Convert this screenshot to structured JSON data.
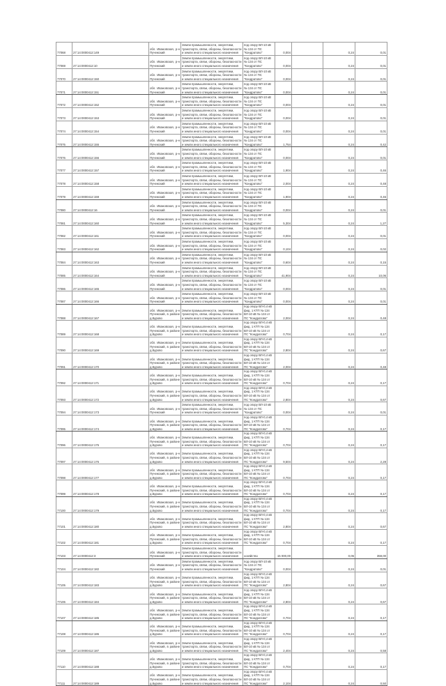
{
  "defaults": {
    "address_short": "обл. Ивановская, р-н Пучежский",
    "address_long": "обл. Ивановская, р-н Пучежский, в районе д.Бурово",
    "description": "Земли промышленности, энергетики, транспорта, связи, обороны, безопасности и земли иного специального назначения",
    "location_short": "под опору ВЛ-10 кВ № 134 от ПС \"Кондратово\"",
    "location_long": "под опору ВЛ-0,4 кВ фид. 1 КТП № 134 ВЛ-10 кВ № 134 от ПС \"Кондратово\""
  },
  "rows": [
    {
      "id": "77068",
      "cad": "27:14:0000412:149",
      "t": "s",
      "area": "0,004",
      "coef": "0,24",
      "value": "0,01"
    },
    {
      "id": "77069",
      "cad": "27:14:0000412:10",
      "t": "s",
      "area": "0,004",
      "coef": "0,24",
      "value": "0,01"
    },
    {
      "id": "77070",
      "cad": "27:14:0000412:150",
      "t": "s",
      "area": "0,004",
      "coef": "0,24",
      "value": "0,01"
    },
    {
      "id": "77071",
      "cad": "27:14:0000412:151",
      "t": "s",
      "area": "0,004",
      "coef": "0,24",
      "value": "0,01"
    },
    {
      "id": "77072",
      "cad": "27:14:0000412:152",
      "t": "s",
      "area": "0,004",
      "coef": "0,24",
      "value": "0,01"
    },
    {
      "id": "77073",
      "cad": "27:14:0000412:153",
      "t": "s",
      "area": "0,004",
      "coef": "0,24",
      "value": "0,01"
    },
    {
      "id": "77074",
      "cad": "27:14:0000412:154",
      "t": "s",
      "area": "0,004",
      "coef": "0,24",
      "value": "0,01"
    },
    {
      "id": "77075",
      "cad": "27:14:0000412:155",
      "t": "s",
      "area": "1,754",
      "coef": "0,24",
      "value": "0,42"
    },
    {
      "id": "77076",
      "cad": "27:14:0000412:156",
      "t": "s",
      "area": "0,004",
      "coef": "0,24",
      "value": "0,01"
    },
    {
      "id": "77077",
      "cad": "27:14:0000412:157",
      "t": "s",
      "area": "1,904",
      "coef": "0,24",
      "value": "0,46"
    },
    {
      "id": "77078",
      "cad": "27:14:0000412:158",
      "t": "s",
      "area": "2,004",
      "coef": "0,24",
      "value": "0,48"
    },
    {
      "id": "77079",
      "cad": "27:14:0000412:159",
      "t": "s",
      "area": "1,904",
      "coef": "0,24",
      "value": "0,46"
    },
    {
      "id": "77080",
      "cad": "27:14:0000412:16",
      "t": "s",
      "area": "0,004",
      "coef": "0,24",
      "value": "0,01"
    },
    {
      "id": "77081",
      "cad": "27:14:0000412:160",
      "t": "s",
      "area": "5,304",
      "coef": "0,24",
      "value": "1,27"
    },
    {
      "id": "77082",
      "cad": "27:14:0000412:161",
      "t": "s",
      "area": "0,004",
      "coef": "0,24",
      "value": "0,01"
    },
    {
      "id": "77083",
      "cad": "27:14:0000412:162",
      "t": "s",
      "area": "0,104",
      "coef": "0,24",
      "value": "0,02"
    },
    {
      "id": "77084",
      "cad": "27:14:0000412:163",
      "t": "s",
      "area": "0,604",
      "coef": "0,24",
      "value": "0,15"
    },
    {
      "id": "77085",
      "cad": "27:14:0000412:164",
      "t": "s",
      "area": "41,904",
      "coef": "0,24",
      "value": "10,06"
    },
    {
      "id": "77086",
      "cad": "27:14:0000412:165",
      "t": "s",
      "area": "0,004",
      "coef": "0,24",
      "value": "0,01"
    },
    {
      "id": "77087",
      "cad": "27:14:0000412:166",
      "t": "s",
      "area": "0,004",
      "coef": "0,24",
      "value": "0,01"
    },
    {
      "id": "77088",
      "cad": "27:14:0000412:167",
      "t": "l",
      "area": "2,004",
      "coef": "0,24",
      "value": "0,48"
    },
    {
      "id": "77089",
      "cad": "27:14:0000412:168",
      "t": "l",
      "area": "0,704",
      "coef": "0,24",
      "value": "0,17"
    },
    {
      "id": "77090",
      "cad": "27:14:0000412:169",
      "t": "l",
      "area": "2,804",
      "coef": "0,24",
      "value": "0,67"
    },
    {
      "id": "77091",
      "cad": "27:14:0000412:170",
      "t": "l",
      "area": "2,004",
      "coef": "0,24",
      "value": "0,48"
    },
    {
      "id": "77092",
      "cad": "27:14:0000412:171",
      "t": "l",
      "area": "0,704",
      "coef": "0,24",
      "value": "0,17"
    },
    {
      "id": "77093",
      "cad": "27:14:0000412:172",
      "t": "l",
      "area": "2,804",
      "coef": "0,24",
      "value": "0,67"
    },
    {
      "id": "77094",
      "cad": "27:14:0000412:173",
      "t": "s",
      "area": "0,004",
      "coef": "0,24",
      "value": "0,01"
    },
    {
      "id": "77095",
      "cad": "27:14:0000412:174",
      "t": "l",
      "area": "0,704",
      "coef": "0,24",
      "value": "0,17"
    },
    {
      "id": "77096",
      "cad": "27:14:0000412:175",
      "t": "l",
      "area": "0,704",
      "coef": "0,24",
      "value": "0,17"
    },
    {
      "id": "77097",
      "cad": "27:14:0000412:176",
      "t": "l",
      "area": "9,504",
      "coef": "0,24",
      "value": "2,28"
    },
    {
      "id": "77098",
      "cad": "27:14:0000412:177",
      "t": "l",
      "area": "0,704",
      "coef": "0,24",
      "value": "0,17"
    },
    {
      "id": "77099",
      "cad": "27:14:0000412:178",
      "t": "l",
      "area": "0,704",
      "coef": "0,24",
      "value": "0,17"
    },
    {
      "id": "77100",
      "cad": "27:14:0000412:179",
      "t": "l",
      "area": "0,704",
      "coef": "0,24",
      "value": "0,17"
    },
    {
      "id": "77101",
      "cad": "27:14:0000412:180",
      "t": "l",
      "area": "2,804",
      "coef": "0,24",
      "value": "0,67"
    },
    {
      "id": "77102",
      "cad": "27:14:0000412:181",
      "t": "l",
      "area": "0,704",
      "coef": "0,24",
      "value": "0,17"
    },
    {
      "id": "77103",
      "cad": "27:14:0000412:3",
      "t": "h",
      "location": "хозяйство",
      "area": "15 000,00",
      "coef": "0,06",
      "value": "359,00"
    },
    {
      "id": "77104",
      "cad": "27:14:0000412:182",
      "t": "s",
      "area": "0,004",
      "coef": "0,24",
      "value": "0,01"
    },
    {
      "id": "77105",
      "cad": "27:14:0000412:183",
      "t": "l",
      "area": "2,804",
      "coef": "0,24",
      "value": "0,67"
    },
    {
      "id": "77106",
      "cad": "27:14:0000412:184",
      "t": "l",
      "area": "2,804",
      "coef": "0,24",
      "value": "0,67"
    },
    {
      "id": "77107",
      "cad": "27:14:0000412:185",
      "t": "l",
      "area": "0,704",
      "coef": "0,24",
      "value": "0,17"
    },
    {
      "id": "77108",
      "cad": "27:14:0000412:186",
      "t": "l",
      "area": "0,704",
      "coef": "0,24",
      "value": "0,17"
    },
    {
      "id": "77109",
      "cad": "27:14:0000412:187",
      "t": "l",
      "area": "2,404",
      "coef": "0,24",
      "value": "0,58"
    },
    {
      "id": "77110",
      "cad": "27:14:0000412:188",
      "t": "l",
      "area": "0,704",
      "coef": "0,24",
      "value": "0,17"
    },
    {
      "id": "77111",
      "cad": "27:14:0000412:189",
      "t": "l",
      "area": "2,104",
      "coef": "0,24",
      "value": "0,50"
    }
  ]
}
